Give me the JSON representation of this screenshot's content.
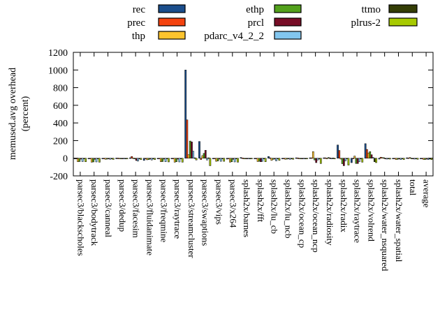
{
  "chart_data": {
    "type": "bar",
    "title": "",
    "ylabel_line1": "memused.avg overhead",
    "ylabel_line2": "(percent)",
    "xlabel": "",
    "ylim": [
      -200,
      1200
    ],
    "ytick_step": 200,
    "ytick_labels": [
      "-200",
      "0",
      "200",
      "400",
      "600",
      "800",
      "1000",
      "1200"
    ],
    "grid": false,
    "legend_position": "top, 3 columns, boxed swatches",
    "legend_columns": [
      [
        "rec",
        "prec",
        "thp"
      ],
      [
        "ethp",
        "prcl",
        "pdarc_v4_2_2"
      ],
      [
        "ttmo",
        "plrus-2"
      ]
    ],
    "categories": [
      "parsec3/blackscholes",
      "parsec3/bodytrack",
      "parsec3/canneal",
      "parsec3/dedup",
      "parsec3/facesim",
      "parsec3/fluidanimate",
      "parsec3/freqmine",
      "parsec3/raytrace",
      "parsec3/streamcluster",
      "parsec3/swaptions",
      "parsec3/vips",
      "parsec3/x264",
      "splash2x/barnes",
      "splash2x/fft",
      "splash2x/lu_cb",
      "splash2x/lu_ncb",
      "splash2x/ocean_cp",
      "splash2x/ocean_ncp",
      "splash2x/radiosity",
      "splash2x/radix",
      "splash2x/raytrace",
      "splash2x/volrend",
      "splash2x/water_nsquared",
      "splash2x/water_spatial",
      "total",
      "average"
    ],
    "series": [
      {
        "name": "rec",
        "color": "#1b4e8c",
        "values": [
          -5,
          -5,
          -4,
          2,
          5,
          -25,
          -5,
          -5,
          1000,
          190,
          -8,
          -10,
          8,
          -5,
          20,
          -5,
          5,
          5,
          5,
          150,
          -50,
          165,
          -10,
          -5,
          5,
          -5
        ]
      },
      {
        "name": "prec",
        "color": "#f4430f",
        "values": [
          -5,
          -6,
          -4,
          2,
          20,
          -8,
          -6,
          -5,
          435,
          -15,
          -6,
          -8,
          4,
          -5,
          5,
          -4,
          4,
          5,
          5,
          88,
          -5,
          100,
          12,
          -5,
          4,
          -5
        ]
      },
      {
        "name": "thp",
        "color": "#fdc42e",
        "values": [
          -40,
          -45,
          -12,
          -4,
          4,
          -18,
          -40,
          -45,
          40,
          30,
          -35,
          -45,
          -6,
          -38,
          -25,
          -12,
          -6,
          75,
          -8,
          -10,
          25,
          60,
          8,
          -15,
          8,
          -15
        ]
      },
      {
        "name": "ethp",
        "color": "#53a11c",
        "values": [
          -38,
          -42,
          -10,
          -4,
          -6,
          -15,
          -38,
          -40,
          195,
          55,
          -32,
          -40,
          -5,
          -35,
          -12,
          -10,
          -5,
          -20,
          8,
          -62,
          -60,
          75,
          6,
          -12,
          -6,
          -14
        ]
      },
      {
        "name": "prcl",
        "color": "#770d26",
        "values": [
          -10,
          -12,
          -6,
          -3,
          -26,
          -10,
          -10,
          -10,
          185,
          90,
          -10,
          -12,
          -4,
          -40,
          -10,
          -8,
          -5,
          -50,
          4,
          -85,
          -60,
          40,
          -8,
          -8,
          -8,
          -10
        ]
      },
      {
        "name": "pdarc_v4_2_2",
        "color": "#82c6ef",
        "values": [
          -38,
          -42,
          -12,
          -5,
          -33,
          -20,
          -40,
          -42,
          80,
          -20,
          -35,
          -42,
          -8,
          -35,
          -30,
          -12,
          -6,
          -20,
          -8,
          -30,
          -40,
          10,
          -10,
          -15,
          -10,
          -15
        ]
      },
      {
        "name": "ttmo",
        "color": "#343d06",
        "values": [
          -5,
          -6,
          -4,
          -2,
          -6,
          -5,
          -6,
          -5,
          5,
          5,
          -6,
          -8,
          -3,
          -8,
          -5,
          -4,
          -3,
          -10,
          3,
          -8,
          -8,
          -40,
          -4,
          -5,
          -4,
          -5
        ]
      },
      {
        "name": "plrus-2",
        "color": "#a7ca00",
        "values": [
          -40,
          -45,
          -14,
          -5,
          -15,
          -15,
          -42,
          -45,
          -20,
          -85,
          -35,
          -45,
          -8,
          -40,
          -25,
          -12,
          -8,
          -60,
          -8,
          -78,
          -45,
          -50,
          -10,
          -15,
          -12,
          -16
        ]
      }
    ]
  }
}
